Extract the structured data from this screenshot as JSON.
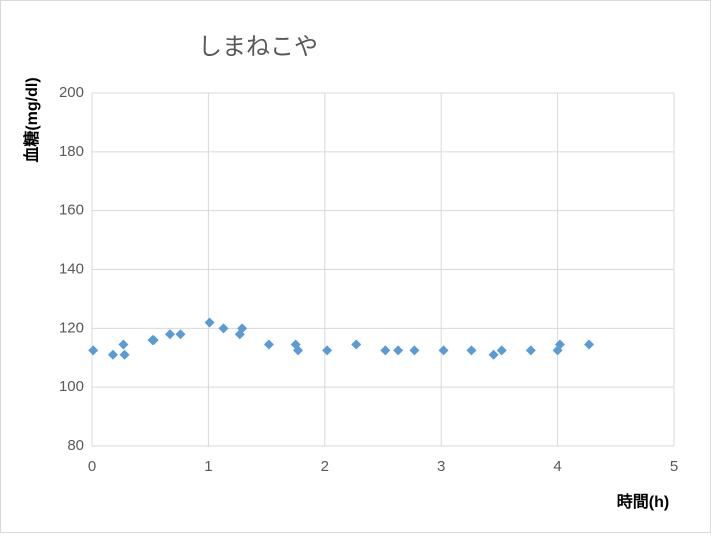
{
  "chart_data": {
    "type": "scatter",
    "title": "しまねこや",
    "y_label": "血糖(mg/dl)",
    "x_label": "時間(h)",
    "series": [
      {
        "color": "#5b9bd5",
        "x": [
          0.01,
          0.18,
          0.27,
          0.28,
          0.52,
          0.53,
          0.67,
          0.76,
          1.01,
          1.13,
          1.27,
          1.29,
          1.52,
          1.75,
          1.77,
          2.02,
          2.27,
          2.52,
          2.63,
          2.77,
          3.02,
          3.26,
          3.45,
          3.52,
          3.77,
          4.0,
          4.02,
          4.27
        ],
        "values": [
          112.5,
          111,
          114.5,
          111,
          116,
          116,
          118,
          118,
          122,
          120,
          118,
          120,
          114.5,
          114.5,
          112.5,
          112.5,
          114.5,
          112.5,
          112.5,
          112.5,
          112.5,
          112.5,
          111,
          112.5,
          112.5,
          112.5,
          114.5,
          114.5
        ]
      }
    ],
    "xlim": [
      0,
      5
    ],
    "xticks": [
      0,
      1,
      2,
      3,
      4,
      5
    ],
    "ylim": [
      80,
      200
    ],
    "yticks": [
      80,
      100,
      120,
      140,
      160,
      180,
      200
    ],
    "grid": true
  }
}
